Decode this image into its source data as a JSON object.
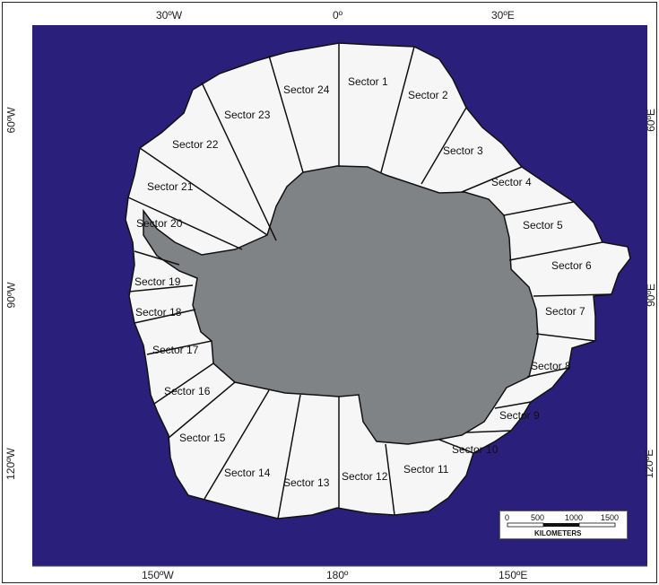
{
  "map": {
    "ocean_color": "#2a1f7a",
    "ice_color": "#f6f6f6",
    "land_color": "#7f8386",
    "sector_labels": [
      "Sector 1",
      "Sector 2",
      "Sector 3",
      "Sector 4",
      "Sector 5",
      "Sector 6",
      "Sector 7",
      "Sector 8",
      "Sector 9",
      "Sector 10",
      "Sector 11",
      "Sector 12",
      "Sector 13",
      "Sector 14",
      "Sector 15",
      "Sector 16",
      "Sector 17",
      "Sector 18",
      "Sector 19",
      "Sector 20",
      "Sector 21",
      "Sector 22",
      "Sector 23",
      "Sector 24"
    ]
  },
  "axes": {
    "top": [
      "30ºW",
      "0º",
      "30ºE"
    ],
    "bottom": [
      "150ºW",
      "180º",
      "150ºE"
    ],
    "left": [
      "60ºW",
      "90ºW",
      "120ºW"
    ],
    "right": [
      "60ºE",
      "90ºE",
      "120ºE"
    ]
  },
  "scale_bar": {
    "ticks": [
      "0",
      "500",
      "1000",
      "1500"
    ],
    "unit": "KILOMETERS"
  }
}
